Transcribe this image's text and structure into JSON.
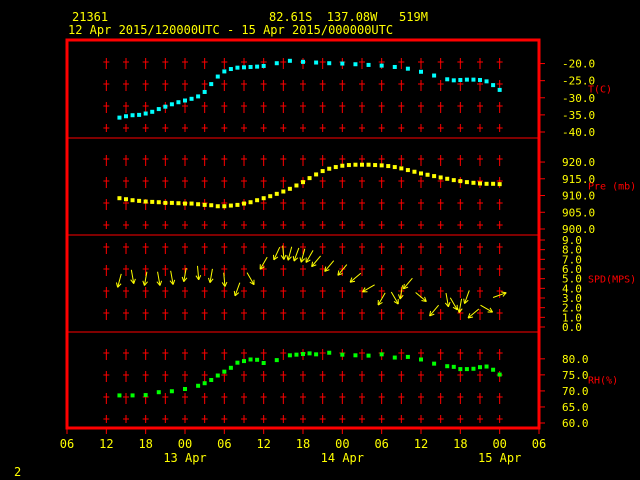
{
  "header": {
    "station_id": "21361",
    "location": "82.61S  137.08W   519M",
    "period": "12 Apr 2015/120000UTC - 15 Apr 2015/000000UTC"
  },
  "footer": {
    "page_number": "2"
  },
  "colors": {
    "frame": "#ff0000",
    "header_text": "#ffff00",
    "axis_text": "#ffff00",
    "panel_label": "#ff0000",
    "grid_mark": "#ff0000",
    "temperature": "#00ffff",
    "pressure": "#ffff00",
    "wind": "#ffff00",
    "humidity": "#00ff00"
  },
  "chart_data": {
    "type": "meteogram",
    "x_axis": {
      "unit": "hour of day",
      "range_hours_from_12Apr_00UTC": [
        6,
        78
      ],
      "tick_labels": [
        "06",
        "12",
        "18",
        "00",
        "06",
        "12",
        "18",
        "00",
        "06",
        "12",
        "18",
        "00",
        "06"
      ],
      "date_labels": [
        {
          "label": "13 Apr",
          "at_hour": 24
        },
        {
          "label": "14 Apr",
          "at_hour": 48
        },
        {
          "label": "15 Apr",
          "at_hour": 72
        }
      ]
    },
    "panels": [
      {
        "id": "temperature",
        "label": "T(C)",
        "range": [
          -40,
          -17.5
        ],
        "ticks": [
          "-20.0",
          "-25.0",
          "-30.0",
          "-35.0",
          "-40.0"
        ],
        "tick_values": [
          -20,
          -25,
          -30,
          -35,
          -40
        ],
        "x": [
          14,
          15,
          16,
          17,
          18,
          19,
          20,
          21,
          22,
          23,
          24,
          25,
          26,
          27,
          28,
          29,
          30,
          31,
          32,
          33,
          34,
          35,
          36,
          38,
          40,
          42,
          44,
          46,
          48,
          50,
          52,
          54,
          56,
          58,
          60,
          62,
          64,
          65,
          66,
          67,
          68,
          69,
          70,
          71,
          72
        ],
        "values": [
          -35.8,
          -35.4,
          -35.1,
          -35.0,
          -34.6,
          -34.1,
          -33.3,
          -32.6,
          -31.9,
          -31.3,
          -30.8,
          -30.3,
          -29.6,
          -28.3,
          -26.0,
          -23.8,
          -22.3,
          -21.6,
          -21.2,
          -21.1,
          -21.0,
          -20.9,
          -20.7,
          -19.9,
          -19.2,
          -19.5,
          -19.7,
          -19.9,
          -20.0,
          -20.2,
          -20.4,
          -20.6,
          -21.0,
          -21.5,
          -22.4,
          -23.5,
          -24.6,
          -24.9,
          -24.8,
          -24.7,
          -24.7,
          -24.8,
          -25.2,
          -26.3,
          -27.7
        ]
      },
      {
        "id": "pressure",
        "label": "Pre (mb)",
        "range": [
          900,
          923
        ],
        "ticks": [
          "920.0",
          "915.0",
          "910.0",
          "905.0",
          "900.0"
        ],
        "tick_values": [
          920,
          915,
          910,
          905,
          900
        ],
        "x": [
          14,
          15,
          16,
          17,
          18,
          19,
          20,
          21,
          22,
          23,
          24,
          25,
          26,
          27,
          28,
          29,
          30,
          31,
          32,
          33,
          34,
          35,
          36,
          37,
          38,
          39,
          40,
          41,
          42,
          43,
          44,
          45,
          46,
          47,
          48,
          49,
          50,
          51,
          52,
          53,
          54,
          55,
          56,
          57,
          58,
          59,
          60,
          61,
          62,
          63,
          64,
          65,
          66,
          67,
          68,
          69,
          70,
          71,
          72
        ],
        "values": [
          909.2,
          908.9,
          908.6,
          908.4,
          908.2,
          908.1,
          908.0,
          907.8,
          907.8,
          907.7,
          907.6,
          907.6,
          907.4,
          907.2,
          907.1,
          906.8,
          906.8,
          907.0,
          907.2,
          907.6,
          908.0,
          908.6,
          909.2,
          909.8,
          910.5,
          911.2,
          912.0,
          913.0,
          914.0,
          915.2,
          916.3,
          917.3,
          918.0,
          918.5,
          918.9,
          919.1,
          919.2,
          919.2,
          919.2,
          919.1,
          919.0,
          918.8,
          918.5,
          918.1,
          917.6,
          917.1,
          916.6,
          916.2,
          915.8,
          915.4,
          915.0,
          914.6,
          914.3,
          914.0,
          913.8,
          913.6,
          913.5,
          913.5,
          913.4
        ]
      },
      {
        "id": "wind",
        "label": "SPD(MPS)",
        "range": [
          0,
          9
        ],
        "ticks": [
          "9.0",
          "8.0",
          "7.0",
          "6.0",
          "5.0",
          "4.0",
          "3.0",
          "2.0",
          "1.0",
          "0.0"
        ],
        "tick_values": [
          9,
          8,
          7,
          6,
          5,
          4,
          3,
          2,
          1,
          0
        ],
        "x": [
          14,
          16,
          18,
          20,
          22,
          24,
          26,
          28,
          30,
          32,
          34,
          36,
          38,
          39,
          40,
          41,
          42,
          43,
          44,
          46,
          48,
          50,
          52,
          54,
          56,
          57,
          58,
          60,
          62,
          64,
          65,
          66,
          67,
          68,
          70,
          72
        ],
        "speeds": [
          4.8,
          5.2,
          5.0,
          5.0,
          5.1,
          5.4,
          5.6,
          5.3,
          4.9,
          3.9,
          5.0,
          6.6,
          7.6,
          7.7,
          7.6,
          7.5,
          7.4,
          7.3,
          6.8,
          6.3,
          5.9,
          5.1,
          4.0,
          2.9,
          3.0,
          3.6,
          4.5,
          3.1,
          1.7,
          2.8,
          2.4,
          2.2,
          3.1,
          1.4,
          1.9,
          3.3
        ],
        "directions_deg": [
          15,
          350,
          10,
          350,
          350,
          10,
          355,
          10,
          355,
          20,
          330,
          30,
          25,
          355,
          15,
          20,
          15,
          30,
          40,
          40,
          40,
          50,
          60,
          30,
          330,
          10,
          40,
          310,
          40,
          350,
          330,
          10,
          20,
          50,
          300,
          250
        ]
      },
      {
        "id": "humidity",
        "label": "RH(%)",
        "range": [
          60,
          84
        ],
        "ticks": [
          "80.0",
          "75.0",
          "70.0",
          "65.0",
          "60.0"
        ],
        "tick_values": [
          80,
          75,
          70,
          65,
          60
        ],
        "x": [
          14,
          16,
          18,
          20,
          22,
          24,
          26,
          27,
          28,
          29,
          30,
          31,
          32,
          33,
          34,
          35,
          36,
          38,
          40,
          41,
          42,
          43,
          44,
          46,
          48,
          50,
          52,
          54,
          56,
          58,
          60,
          62,
          64,
          65,
          66,
          67,
          68,
          69,
          70,
          71,
          72
        ],
        "values": [
          68.6,
          68.6,
          68.7,
          69.6,
          69.9,
          70.6,
          71.6,
          72.4,
          73.4,
          74.8,
          76.0,
          77.2,
          78.8,
          79.3,
          79.8,
          79.7,
          78.7,
          79.6,
          81.1,
          81.3,
          81.5,
          81.7,
          81.4,
          81.9,
          81.3,
          81.1,
          81.0,
          81.4,
          80.4,
          80.6,
          79.8,
          78.5,
          77.7,
          77.5,
          76.8,
          76.8,
          76.9,
          77.4,
          77.6,
          76.6,
          75.1
        ]
      }
    ]
  }
}
